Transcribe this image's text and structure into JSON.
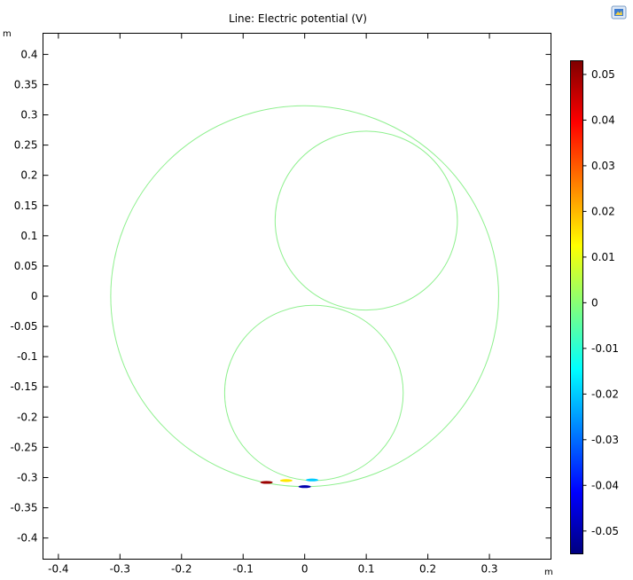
{
  "chart_data": {
    "type": "line",
    "title": "Line: Electric potential (V)",
    "x_unit": "m",
    "y_unit": "m",
    "xlim": [
      -0.425,
      0.4
    ],
    "ylim": [
      -0.435,
      0.435
    ],
    "x_ticks": [
      -0.4,
      -0.3,
      -0.2,
      -0.1,
      0,
      0.1,
      0.2,
      0.3
    ],
    "x_tick_labels": [
      "-0.4",
      "-0.3",
      "-0.2",
      "-0.1",
      "0",
      "0.1",
      "0.2",
      "0.3"
    ],
    "y_ticks": [
      0.4,
      0.35,
      0.3,
      0.25,
      0.2,
      0.15,
      0.1,
      0.05,
      0,
      -0.05,
      -0.1,
      -0.15,
      -0.2,
      -0.25,
      -0.3,
      -0.35,
      -0.4
    ],
    "y_tick_labels": [
      "0.4",
      "0.35",
      "0.3",
      "0.25",
      "0.2",
      "0.15",
      "0.1",
      "0.05",
      "0",
      "-0.05",
      "-0.1",
      "-0.15",
      "-0.2",
      "-0.25",
      "-0.3",
      "-0.35",
      "-0.4"
    ],
    "grid": false,
    "series": [
      {
        "shape": "circle",
        "cx": 0.0,
        "cy": 0.0,
        "r": 0.315,
        "potential": 0.0
      },
      {
        "shape": "circle",
        "cx": 0.1,
        "cy": 0.125,
        "r": 0.148,
        "potential": 0.0
      },
      {
        "shape": "circle",
        "cx": 0.015,
        "cy": -0.16,
        "r": 0.145,
        "potential": 0.0
      }
    ],
    "hotspots": [
      {
        "x": -0.062,
        "y": -0.308,
        "potential": 0.05
      },
      {
        "x": -0.03,
        "y": -0.305,
        "potential": 0.015
      },
      {
        "x": 0.0,
        "y": -0.315,
        "potential": -0.05
      },
      {
        "x": 0.012,
        "y": -0.304,
        "potential": -0.02
      }
    ],
    "colorbar": {
      "colormap": "rainbow",
      "min": -0.055,
      "max": 0.053,
      "ticks": [
        0.05,
        0.04,
        0.03,
        0.02,
        0.01,
        0,
        -0.01,
        -0.02,
        -0.03,
        -0.04,
        -0.05
      ],
      "tick_labels": [
        "0.05",
        "0.04",
        "0.03",
        "0.02",
        "0.01",
        "0",
        "-0.01",
        "-0.02",
        "-0.03",
        "-0.04",
        "-0.05"
      ]
    }
  },
  "toolbar": {
    "icon": "image-export-icon"
  }
}
